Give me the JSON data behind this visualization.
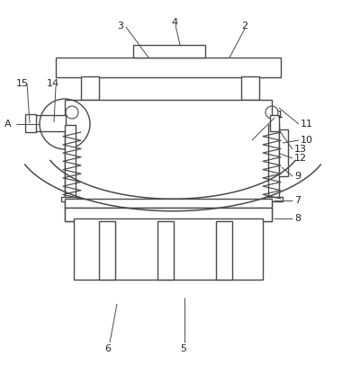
{
  "bg_color": "#ffffff",
  "line_color": "#4a4a4a",
  "line_width": 1.0,
  "fig_width": 3.8,
  "fig_height": 4.16,
  "dpi": 100
}
